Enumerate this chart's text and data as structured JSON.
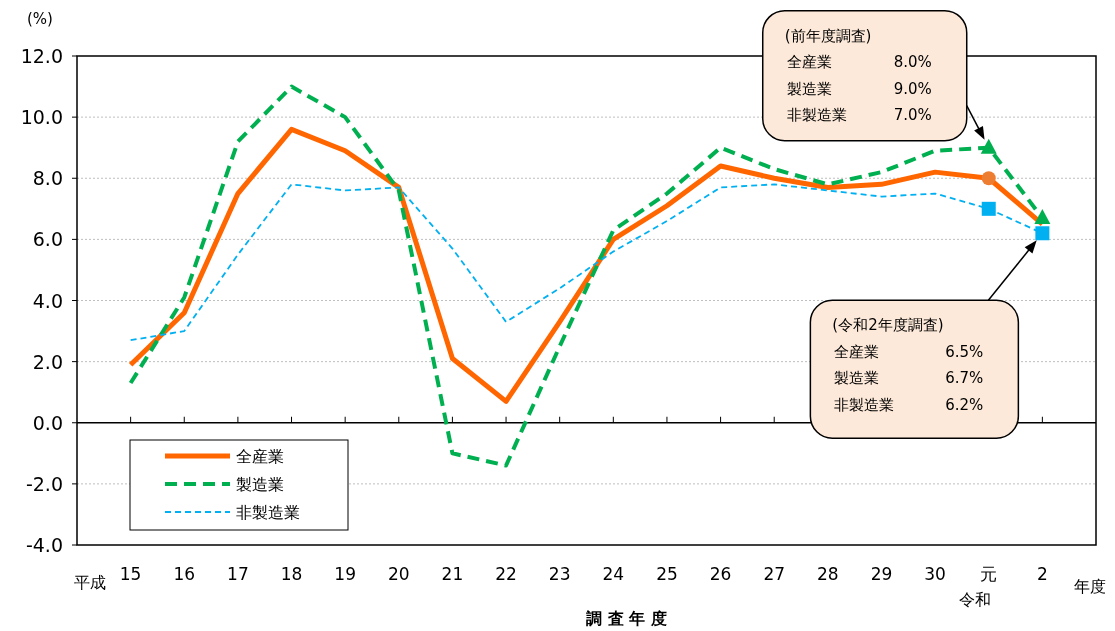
{
  "chart_data": {
    "type": "line",
    "ylabel": "(%)",
    "xlabel": "調 査 年 度",
    "categories": [
      "15",
      "16",
      "17",
      "18",
      "19",
      "20",
      "21",
      "22",
      "23",
      "24",
      "25",
      "26",
      "27",
      "28",
      "29",
      "30",
      "元",
      "2"
    ],
    "series": [
      {
        "name": "全産業",
        "color": "#ff6600",
        "line_style": "solid",
        "values": [
          1.9,
          3.6,
          7.5,
          9.6,
          8.9,
          7.7,
          2.1,
          0.7,
          3.3,
          6.0,
          7.1,
          8.4,
          8.0,
          7.7,
          7.8,
          8.2,
          8.0,
          6.5
        ]
      },
      {
        "name": "製造業",
        "color": "#00b050",
        "line_style": "dashed",
        "values": [
          1.3,
          4.1,
          9.2,
          11.0,
          10.0,
          7.6,
          -1.0,
          -1.4,
          2.5,
          6.3,
          7.5,
          9.0,
          8.3,
          7.8,
          8.2,
          8.9,
          9.0,
          6.7
        ]
      },
      {
        "name": "非製造業",
        "color": "#00b0f0",
        "line_style": "dashed",
        "values": [
          2.7,
          3.0,
          5.5,
          7.8,
          7.6,
          7.7,
          5.7,
          3.3,
          4.4,
          5.6,
          6.6,
          7.7,
          7.8,
          7.6,
          7.4,
          7.5,
          7.0,
          6.2
        ]
      },
      {
        "type": "scatter",
        "color": "#ed7d31",
        "marker": "circle",
        "x": [
          "元"
        ],
        "values": [
          8.0
        ]
      },
      {
        "type": "scatter",
        "color": "#00b050",
        "marker": "triangle",
        "x": [
          "元",
          "2"
        ],
        "values": [
          9.0,
          6.7
        ]
      },
      {
        "type": "scatter",
        "color": "#00b0f0",
        "marker": "square",
        "x": [
          "元",
          "2"
        ],
        "values": [
          7.0,
          6.2
        ]
      }
    ],
    "ylim": [
      -4,
      12
    ],
    "yticks": [
      {
        "value": -4,
        "label": "-4.0"
      },
      {
        "value": -2,
        "label": "-2.0"
      },
      {
        "value": 0,
        "label": "0.0"
      },
      {
        "value": 2,
        "label": "2.0"
      },
      {
        "value": 4,
        "label": "4.0"
      },
      {
        "value": 6,
        "label": "6.0"
      },
      {
        "value": 8,
        "label": "8.0"
      },
      {
        "value": 10,
        "label": "10.0"
      },
      {
        "value": 12,
        "label": "12.0"
      }
    ],
    "grid": "y",
    "legend": "bottom left",
    "annotations": [
      "(前年度調査)",
      "全産業",
      "8.0%",
      "製造業",
      "9.0%",
      "非製造業",
      "7.0%",
      "(令和2年度調査)",
      "全産業",
      "6.5%",
      "製造業",
      "6.7%",
      "非製造業",
      "6.2%",
      "平成",
      "令和",
      "年度"
    ]
  }
}
